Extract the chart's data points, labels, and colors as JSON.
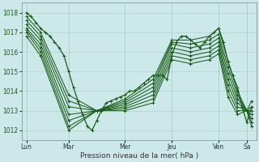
{
  "xlabel": "Pression niveau de la mer( hPa )",
  "ylim": [
    1011.5,
    1018.5
  ],
  "yticks": [
    1012,
    1013,
    1014,
    1015,
    1016,
    1017,
    1018
  ],
  "bg_color": "#cce8e8",
  "grid_color": "#aacccc",
  "line_color": "#1a5c1a",
  "figsize": [
    3.2,
    2.0
  ],
  "dpi": 100,
  "xlim": [
    0,
    100
  ],
  "xtick_positions": [
    2,
    20,
    44,
    64,
    84,
    96
  ],
  "xtick_labels": [
    "Lun",
    "Mar",
    "Mer",
    "Jeu",
    "Ven",
    "Sa"
  ],
  "series_data": [
    {
      "x": [
        2,
        4,
        6,
        8,
        10,
        12,
        14,
        16,
        18,
        20,
        22,
        24,
        26,
        28,
        30,
        32,
        34,
        36,
        38,
        40,
        42,
        44,
        46,
        48,
        50,
        52,
        54,
        56,
        58,
        60,
        62,
        64,
        66,
        68,
        70,
        72,
        74,
        76,
        78,
        80,
        82,
        84,
        86,
        88,
        90,
        92,
        94,
        96,
        98
      ],
      "y": [
        1018.0,
        1017.8,
        1017.5,
        1017.2,
        1017.0,
        1016.8,
        1016.5,
        1016.2,
        1015.8,
        1015.0,
        1014.2,
        1013.5,
        1012.8,
        1012.2,
        1012.0,
        1012.5,
        1013.0,
        1013.4,
        1013.5,
        1013.6,
        1013.7,
        1013.8,
        1014.0,
        1014.0,
        1014.2,
        1014.4,
        1014.6,
        1014.8,
        1014.8,
        1014.8,
        1014.6,
        1015.8,
        1016.5,
        1016.8,
        1016.8,
        1016.6,
        1016.4,
        1016.2,
        1016.5,
        1016.8,
        1017.0,
        1017.2,
        1016.5,
        1015.5,
        1014.8,
        1014.2,
        1013.2,
        1012.4,
        1013.2
      ]
    },
    {
      "x": [
        2,
        8,
        20,
        32,
        44,
        56,
        64,
        72,
        80,
        84,
        88,
        92,
        96,
        98
      ],
      "y": [
        1017.8,
        1017.0,
        1013.8,
        1013.0,
        1013.6,
        1014.6,
        1016.6,
        1016.6,
        1016.8,
        1017.2,
        1015.5,
        1014.0,
        1013.0,
        1013.5
      ]
    },
    {
      "x": [
        2,
        8,
        20,
        32,
        44,
        56,
        64,
        72,
        80,
        84,
        88,
        92,
        96,
        98
      ],
      "y": [
        1017.6,
        1016.8,
        1013.5,
        1013.0,
        1013.5,
        1014.4,
        1016.5,
        1016.4,
        1016.6,
        1016.9,
        1015.2,
        1013.8,
        1013.0,
        1013.2
      ]
    },
    {
      "x": [
        2,
        8,
        20,
        32,
        44,
        56,
        64,
        72,
        80,
        84,
        88,
        92,
        96,
        98
      ],
      "y": [
        1017.4,
        1016.6,
        1013.2,
        1013.0,
        1013.4,
        1014.2,
        1016.4,
        1016.2,
        1016.4,
        1016.7,
        1014.9,
        1013.6,
        1013.0,
        1013.0
      ]
    },
    {
      "x": [
        2,
        8,
        20,
        32,
        44,
        56,
        64,
        72,
        80,
        84,
        88,
        92,
        96,
        98
      ],
      "y": [
        1017.2,
        1016.4,
        1012.8,
        1013.0,
        1013.3,
        1014.0,
        1016.2,
        1016.0,
        1016.2,
        1016.5,
        1014.6,
        1013.4,
        1013.0,
        1012.8
      ]
    },
    {
      "x": [
        2,
        8,
        20,
        32,
        44,
        56,
        64,
        72,
        80,
        84,
        88,
        92,
        96,
        98
      ],
      "y": [
        1017.1,
        1016.2,
        1012.5,
        1013.0,
        1013.2,
        1013.8,
        1016.0,
        1015.8,
        1016.0,
        1016.3,
        1014.3,
        1013.2,
        1013.0,
        1012.6
      ]
    },
    {
      "x": [
        2,
        8,
        20,
        32,
        44,
        56,
        64,
        72,
        80,
        84,
        88,
        92,
        96,
        98
      ],
      "y": [
        1017.0,
        1016.0,
        1012.2,
        1013.0,
        1013.1,
        1013.6,
        1015.8,
        1015.6,
        1015.8,
        1016.1,
        1014.0,
        1013.0,
        1013.0,
        1012.4
      ]
    },
    {
      "x": [
        2,
        8,
        20,
        32,
        44,
        56,
        64,
        72,
        80,
        84,
        88,
        92,
        96,
        98
      ],
      "y": [
        1016.8,
        1015.8,
        1012.0,
        1013.0,
        1013.0,
        1013.4,
        1015.6,
        1015.4,
        1015.6,
        1015.9,
        1013.7,
        1012.8,
        1013.0,
        1012.2
      ]
    }
  ]
}
